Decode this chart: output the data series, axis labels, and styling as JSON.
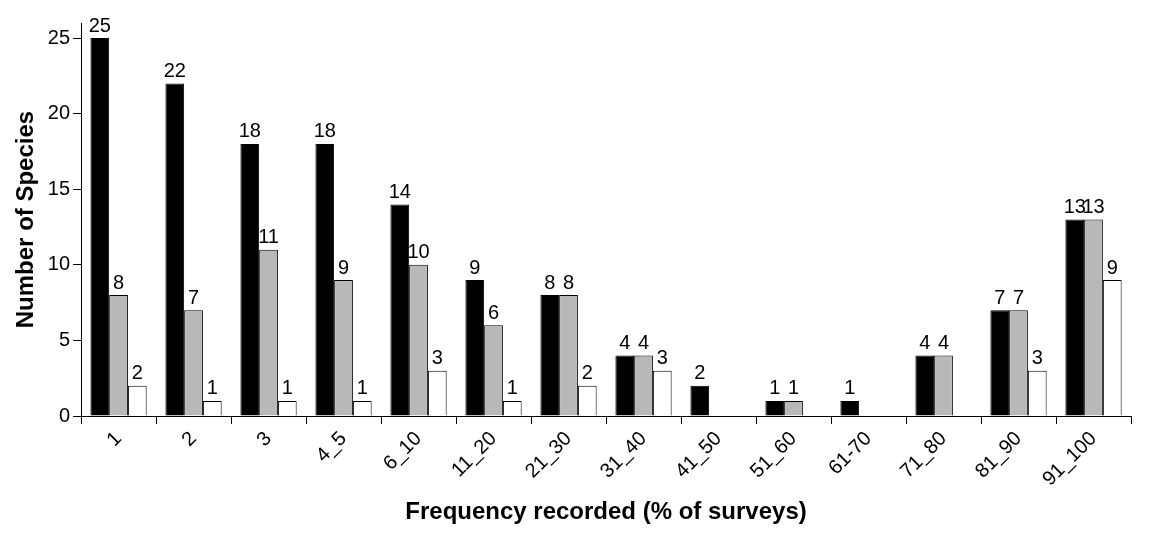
{
  "chart_data": {
    "type": "bar",
    "xlabel": "Frequency recorded (% of surveys)",
    "ylabel": "Number of Species",
    "categories": [
      "1",
      "2",
      "3",
      "4_5",
      "6_10",
      "11_20",
      "21_30",
      "31_40",
      "41_50",
      "51_60",
      "61-70",
      "71_80",
      "81_90",
      "91_100"
    ],
    "series": [
      {
        "color": "#000000",
        "values": [
          25,
          22,
          18,
          18,
          14,
          9,
          8,
          4,
          2,
          1,
          1,
          4,
          7,
          13
        ],
        "value_labels": [
          "25",
          "22",
          "18",
          "18",
          "14",
          "9",
          "8",
          "4",
          "2",
          "1",
          "1",
          "4",
          "7",
          "13"
        ]
      },
      {
        "color": "#b8b8b8",
        "values": [
          8,
          7,
          11,
          9,
          10,
          6,
          8,
          4,
          0,
          1,
          0,
          4,
          7,
          13
        ],
        "value_labels": [
          "8",
          "7",
          "11",
          "9",
          "10",
          "6",
          "8",
          "4",
          null,
          "1",
          null,
          "4",
          "7",
          "13"
        ]
      },
      {
        "color": "#ffffff",
        "values": [
          2,
          1,
          1,
          1,
          3,
          1,
          2,
          3,
          0,
          0,
          0,
          0,
          3,
          9
        ],
        "value_labels": [
          "2",
          "1",
          "1",
          "1",
          "3",
          "1",
          "2",
          "3",
          null,
          null,
          null,
          null,
          "3",
          "9"
        ]
      }
    ],
    "ylim": [
      0,
      26
    ],
    "yticks": [
      0,
      5,
      10,
      15,
      20,
      25
    ],
    "grid": false,
    "legend": false
  }
}
